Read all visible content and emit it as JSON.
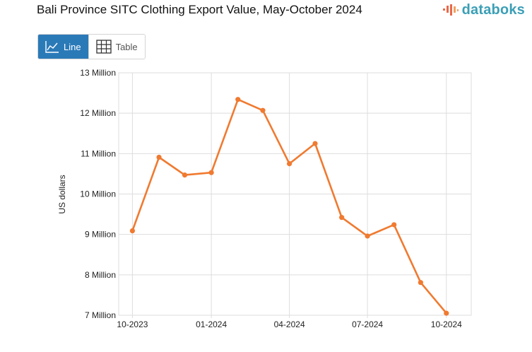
{
  "header": {
    "title": "Bali Province SITC Clothing Export Value, May-October 2024",
    "logo_text": "databoks"
  },
  "view_toggle": {
    "line_label": "Line",
    "table_label": "Table",
    "active": "line"
  },
  "colors": {
    "series": "#f07a30",
    "active_button": "#2b7ab8",
    "grid": "#dddddd",
    "logo": "#3b9fb6"
  },
  "chart_data": {
    "type": "line",
    "ylabel": "US dollars",
    "ylim": [
      7,
      13
    ],
    "y_ticks": [
      {
        "value": 7,
        "label": "7 Million"
      },
      {
        "value": 8,
        "label": "8 Million"
      },
      {
        "value": 9,
        "label": "9 Million"
      },
      {
        "value": 10,
        "label": "10 Million"
      },
      {
        "value": 11,
        "label": "11 Million"
      },
      {
        "value": 12,
        "label": "12 Million"
      },
      {
        "value": 13,
        "label": "13 Million"
      }
    ],
    "x_ticks": [
      {
        "value": "2023-10",
        "label": "10-2023"
      },
      {
        "value": "2024-01",
        "label": "01-2024"
      },
      {
        "value": "2024-04",
        "label": "04-2024"
      },
      {
        "value": "2024-07",
        "label": "07-2024"
      },
      {
        "value": "2024-10",
        "label": "10-2024"
      }
    ],
    "grid": true,
    "legend": "none",
    "series": [
      {
        "points": [
          {
            "x": "2023-10",
            "y": 9.09
          },
          {
            "x": "2023-11",
            "y": 10.91
          },
          {
            "x": "2023-12",
            "y": 10.47
          },
          {
            "x": "2024-01",
            "y": 10.53
          },
          {
            "x": "2024-02",
            "y": 12.34
          },
          {
            "x": "2024-03",
            "y": 12.07
          },
          {
            "x": "2024-04",
            "y": 10.75
          },
          {
            "x": "2024-05",
            "y": 11.25
          },
          {
            "x": "2024-06",
            "y": 9.42
          },
          {
            "x": "2024-07",
            "y": 8.96
          },
          {
            "x": "2024-08",
            "y": 9.24
          },
          {
            "x": "2024-09",
            "y": 7.81
          },
          {
            "x": "2024-10",
            "y": 7.05
          }
        ]
      }
    ]
  }
}
